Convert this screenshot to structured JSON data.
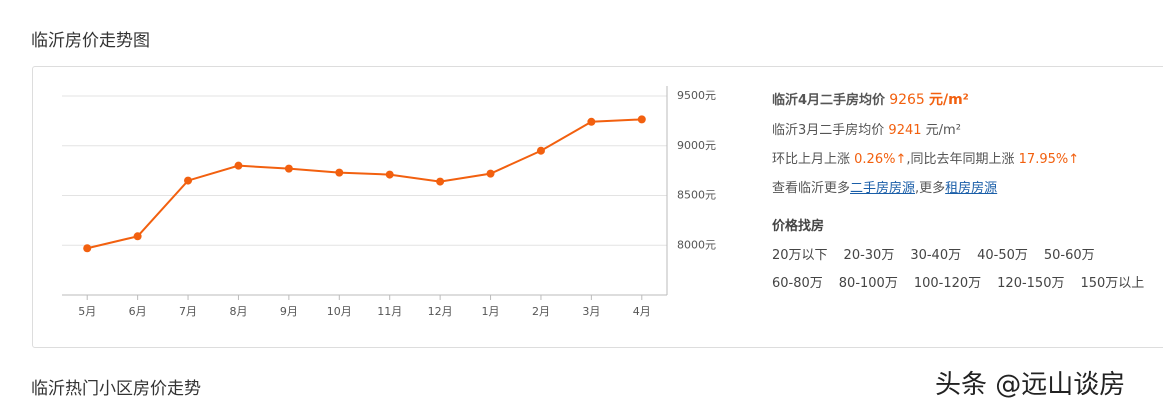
{
  "header": {
    "title": "临沂房价走势图"
  },
  "chart_data": {
    "type": "line",
    "categories": [
      "5月",
      "6月",
      "7月",
      "8月",
      "9月",
      "10月",
      "11月",
      "12月",
      "1月",
      "2月",
      "3月",
      "4月"
    ],
    "values": [
      7970,
      8090,
      8650,
      8800,
      8770,
      8730,
      8710,
      8640,
      8720,
      8950,
      9241,
      9265
    ],
    "color": "#f2600f",
    "ylim": [
      7500,
      9500
    ],
    "yticks": [
      {
        "value": 8000,
        "label": "8000元"
      },
      {
        "value": 8500,
        "label": "8500元"
      },
      {
        "value": 9000,
        "label": "9000元"
      },
      {
        "value": 9500,
        "label": "9500元"
      }
    ],
    "grid": true
  },
  "summary": {
    "current": {
      "label": "临沂4月二手房均价",
      "price": "9265",
      "unit": "元/m²"
    },
    "previous": {
      "label": "临沂3月二手房均价",
      "price": "9241",
      "unit": "元/m²"
    },
    "change": {
      "mom_label": "环比上月上涨",
      "mom": "0.26%",
      "mom_arrow": "↑",
      "yoy_label": ",同比去年同期上涨",
      "yoy": "17.95%",
      "yoy_arrow": "↑"
    },
    "more": {
      "prefix": "查看临沂更多",
      "link1": "二手房房源",
      "middle": ",更多",
      "link2": "租房房源"
    }
  },
  "price_search": {
    "title": "价格找房",
    "rows": [
      [
        "20万以下",
        "20-30万",
        "30-40万",
        "40-50万",
        "50-60万"
      ],
      [
        "60-80万",
        "80-100万",
        "100-120万",
        "120-150万",
        "150万以上"
      ]
    ]
  },
  "section2": {
    "title": "临沂热门小区房价走势"
  },
  "watermark": "头条 @远山谈房"
}
